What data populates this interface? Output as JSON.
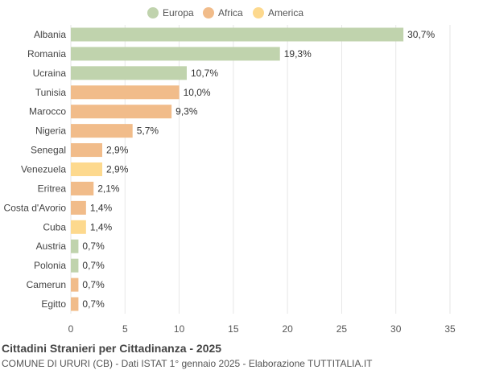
{
  "chart_data": {
    "type": "bar",
    "orientation": "horizontal",
    "title": "Cittadini Stranieri per Cittadinanza - 2025",
    "subtitle": "COMUNE DI URURI (CB) - Dati ISTAT 1° gennaio 2025 - Elaborazione TUTTITALIA.IT",
    "xlim": [
      0,
      35
    ],
    "xticks": [
      0,
      5,
      10,
      15,
      20,
      25,
      30,
      35
    ],
    "grid": true,
    "legend_position": "top",
    "legend": [
      {
        "name": "Europa",
        "color": "#c0d3ad"
      },
      {
        "name": "Africa",
        "color": "#f1bc8a"
      },
      {
        "name": "America",
        "color": "#fdd98e"
      }
    ],
    "categories": [
      "Albania",
      "Romania",
      "Ucraina",
      "Tunisia",
      "Marocco",
      "Nigeria",
      "Senegal",
      "Venezuela",
      "Eritrea",
      "Costa d'Avorio",
      "Cuba",
      "Austria",
      "Polonia",
      "Camerun",
      "Egitto"
    ],
    "values": [
      30.7,
      19.3,
      10.7,
      10.0,
      9.3,
      5.7,
      2.9,
      2.9,
      2.1,
      1.4,
      1.4,
      0.7,
      0.7,
      0.7,
      0.7
    ],
    "labels": [
      "30,7%",
      "19,3%",
      "10,7%",
      "10,0%",
      "9,3%",
      "5,7%",
      "2,9%",
      "2,9%",
      "2,1%",
      "1,4%",
      "1,4%",
      "0,7%",
      "0,7%",
      "0,7%",
      "0,7%"
    ],
    "groups": [
      "Europa",
      "Europa",
      "Europa",
      "Africa",
      "Africa",
      "Africa",
      "Africa",
      "America",
      "Africa",
      "Africa",
      "America",
      "Europa",
      "Europa",
      "Africa",
      "Africa"
    ]
  }
}
